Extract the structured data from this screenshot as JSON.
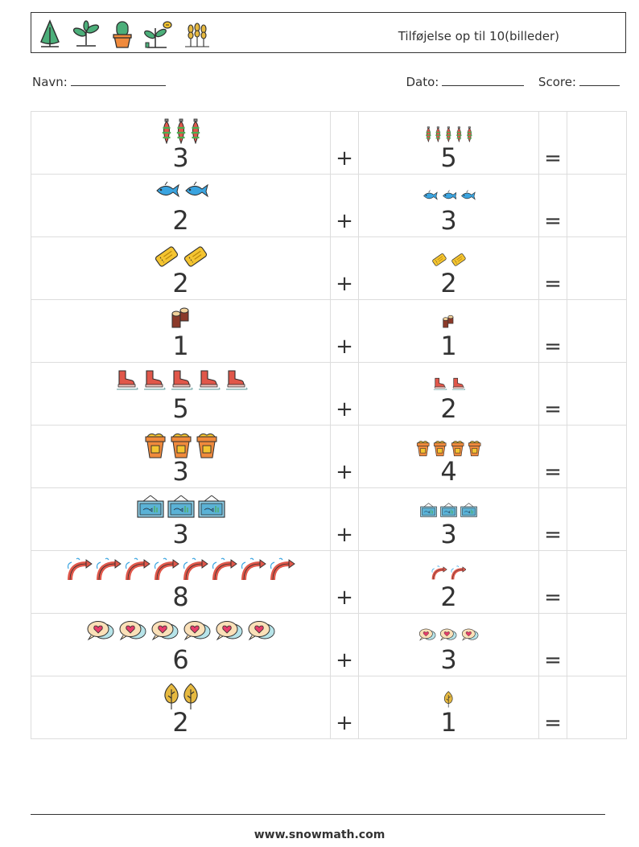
{
  "header": {
    "title": "Tilføjelse op til 10(billeder)",
    "icons": [
      "tree-icon",
      "sprout-icon",
      "cactus-icon",
      "plant-bee-icon",
      "wheat-icon"
    ]
  },
  "fields": {
    "name_label": "Navn:",
    "date_label": "Dato:",
    "score_label": "Score:"
  },
  "problems": [
    {
      "left": "3",
      "left_icon": "ornament",
      "right": "5",
      "right_icon": "ornament",
      "plus": "+",
      "equals": "="
    },
    {
      "left": "2",
      "left_icon": "fish",
      "right": "3",
      "right_icon": "fish",
      "plus": "+",
      "equals": "="
    },
    {
      "left": "2",
      "left_icon": "ticket",
      "right": "2",
      "right_icon": "ticket",
      "plus": "+",
      "equals": "="
    },
    {
      "left": "1",
      "left_icon": "logs",
      "right": "1",
      "right_icon": "logs",
      "plus": "+",
      "equals": "="
    },
    {
      "left": "5",
      "left_icon": "ice-skate",
      "right": "2",
      "right_icon": "ice-skate",
      "plus": "+",
      "equals": "="
    },
    {
      "left": "3",
      "left_icon": "sand-bucket",
      "right": "4",
      "right_icon": "sand-bucket",
      "plus": "+",
      "equals": "="
    },
    {
      "left": "3",
      "left_icon": "aquarium",
      "right": "3",
      "right_icon": "aquarium",
      "plus": "+",
      "equals": "="
    },
    {
      "left": "8",
      "left_icon": "rainbow",
      "right": "2",
      "right_icon": "rainbow",
      "plus": "+",
      "equals": "="
    },
    {
      "left": "6",
      "left_icon": "heart-bubble",
      "right": "3",
      "right_icon": "heart-bubble",
      "plus": "+",
      "equals": "="
    },
    {
      "left": "2",
      "left_icon": "autumn-tree",
      "right": "1",
      "right_icon": "autumn-tree",
      "plus": "+",
      "equals": "="
    }
  ],
  "footer": {
    "url": "www.snowmath.com"
  }
}
